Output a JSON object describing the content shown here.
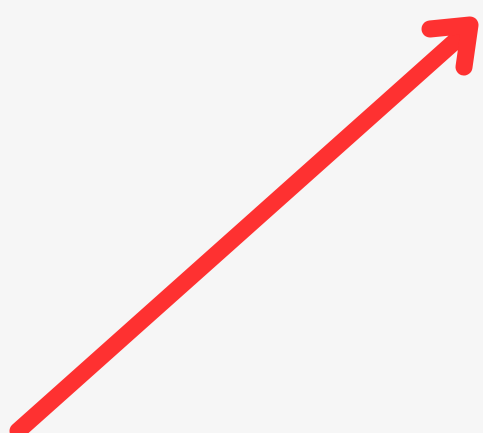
{
  "graphic": {
    "icon": "arrow-up-right-icon",
    "background_color": "#f6f6f6",
    "arrow_color": "#fe3131"
  }
}
